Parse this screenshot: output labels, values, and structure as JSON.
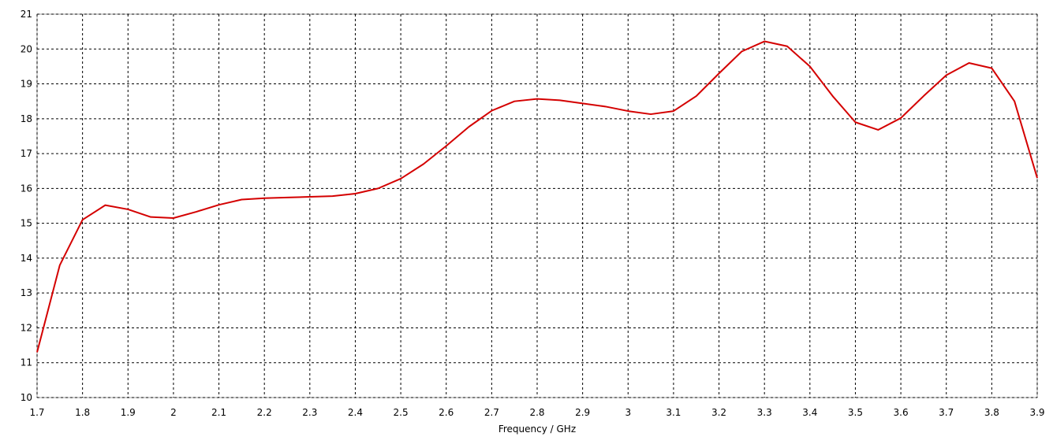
{
  "chart_data": {
    "type": "line",
    "x_label": "Frequency / GHz",
    "x": [
      1.7,
      1.75,
      1.8,
      1.85,
      1.9,
      1.95,
      2.0,
      2.05,
      2.1,
      2.15,
      2.2,
      2.25,
      2.3,
      2.35,
      2.4,
      2.45,
      2.5,
      2.55,
      2.6,
      2.65,
      2.7,
      2.75,
      2.8,
      2.85,
      2.9,
      2.95,
      3.0,
      3.05,
      3.1,
      3.15,
      3.2,
      3.25,
      3.3,
      3.35,
      3.4,
      3.45,
      3.5,
      3.55,
      3.6,
      3.65,
      3.7,
      3.75,
      3.8,
      3.85,
      3.9
    ],
    "series": [
      {
        "color": "#d40000",
        "values": [
          11.3,
          13.8,
          15.1,
          15.52,
          15.4,
          15.18,
          15.15,
          15.33,
          15.53,
          15.68,
          15.72,
          15.74,
          15.76,
          15.78,
          15.85,
          16.0,
          16.28,
          16.7,
          17.22,
          17.77,
          18.23,
          18.5,
          18.57,
          18.53,
          18.44,
          18.35,
          18.22,
          18.13,
          18.22,
          18.65,
          19.3,
          19.93,
          20.22,
          20.08,
          19.5,
          18.65,
          17.9,
          17.68,
          18.02,
          18.65,
          19.25,
          19.6,
          19.45,
          18.5,
          16.3
        ]
      }
    ],
    "xlim": [
      1.7,
      3.9
    ],
    "xticks": [
      1.7,
      1.8,
      1.9,
      2,
      2.1,
      2.2,
      2.3,
      2.4,
      2.5,
      2.6,
      2.7,
      2.8,
      2.9,
      3,
      3.1,
      3.2,
      3.3,
      3.4,
      3.5,
      3.6,
      3.7,
      3.8,
      3.9
    ],
    "ylim": [
      10,
      21
    ],
    "yticks": [
      10,
      11,
      12,
      13,
      14,
      15,
      16,
      17,
      18,
      19,
      20,
      21
    ],
    "grid": true
  }
}
